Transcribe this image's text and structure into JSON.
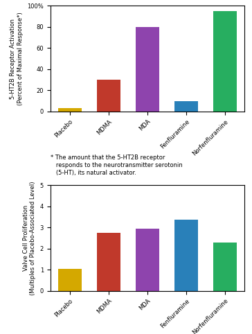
{
  "chart_data": [
    {
      "type": "bar",
      "categories": [
        "Placebo",
        "MDMA",
        "MDA",
        "Fenfluramine",
        "Norfenfluramine"
      ],
      "values": [
        3,
        30,
        80,
        10,
        95
      ],
      "colors": [
        "#d4a800",
        "#c0392b",
        "#8e44ad",
        "#2980b9",
        "#27ae60"
      ],
      "ylabel": "5-HT2B Receptor Activation\n(Percent of Maximal Response*)",
      "ylim": [
        0,
        100
      ],
      "yticks": [
        0,
        20,
        40,
        60,
        80,
        {
          "value": 100,
          "label": "100%"
        }
      ],
      "annotations": [
        "* The amount that the 5-HT2B receptor",
        "   responds to the neurotransmitter serotonin",
        "   (5-HT), its natural activator."
      ]
    },
    {
      "type": "bar",
      "categories": [
        "Placebo",
        "MDMA",
        "MDA",
        "Fenfluramine",
        "Norfenfluramine"
      ],
      "values": [
        1.05,
        2.75,
        2.95,
        3.35,
        2.28
      ],
      "colors": [
        "#d4a800",
        "#c0392b",
        "#8e44ad",
        "#2980b9",
        "#27ae60"
      ],
      "ylabel": "Valve Cell Proliferation\n(Multiples of Placebo-Associated Level)",
      "ylim": [
        0,
        5
      ],
      "yticks": [
        0,
        1,
        2,
        3,
        4,
        5
      ]
    }
  ]
}
